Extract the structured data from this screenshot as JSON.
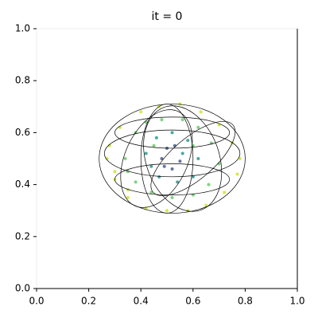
{
  "chart_data": {
    "type": "scatter",
    "title": "it = 0",
    "xlim": [
      0,
      1
    ],
    "ylim": [
      0,
      1
    ],
    "xticks": [
      {
        "value": 0,
        "label": "0.0"
      },
      {
        "value": 0.2,
        "label": "0.2"
      },
      {
        "value": 0.4,
        "label": "0.4"
      },
      {
        "value": 0.6,
        "label": "0.6"
      },
      {
        "value": 0.8,
        "label": "0.8"
      },
      {
        "value": 1,
        "label": "1.0"
      }
    ],
    "yticks": [
      {
        "value": 0,
        "label": "0.0"
      },
      {
        "value": 0.2,
        "label": "0.2"
      },
      {
        "value": 0.4,
        "label": "0.4"
      },
      {
        "value": 0.6,
        "label": "0.6"
      },
      {
        "value": 0.8,
        "label": "0.8"
      },
      {
        "value": 1,
        "label": "1.0"
      }
    ],
    "series": [
      {
        "color": "#cde11d",
        "x": [
          0.28,
          0.3,
          0.32,
          0.35,
          0.4,
          0.47,
          0.55,
          0.63,
          0.7,
          0.75,
          0.78,
          0.77,
          0.72,
          0.65,
          0.58,
          0.5,
          0.42,
          0.35,
          0.3,
          0.27
        ],
        "values": [
          0.55,
          0.45,
          0.62,
          0.38,
          0.68,
          0.7,
          0.71,
          0.68,
          0.63,
          0.56,
          0.5,
          0.44,
          0.37,
          0.32,
          0.3,
          0.3,
          0.31,
          0.35,
          0.42,
          0.5
        ]
      },
      {
        "color": "#5ec962",
        "x": [
          0.34,
          0.38,
          0.42,
          0.48,
          0.56,
          0.62,
          0.67,
          0.7,
          0.66,
          0.6,
          0.52,
          0.44,
          0.38,
          0.35,
          0.45,
          0.6
        ],
        "values": [
          0.5,
          0.6,
          0.64,
          0.65,
          0.65,
          0.62,
          0.56,
          0.48,
          0.4,
          0.36,
          0.35,
          0.37,
          0.41,
          0.45,
          0.55,
          0.55
        ]
      },
      {
        "color": "#21918c",
        "x": [
          0.42,
          0.46,
          0.52,
          0.58,
          0.62,
          0.6,
          0.54,
          0.47,
          0.44,
          0.56
        ],
        "values": [
          0.52,
          0.58,
          0.6,
          0.57,
          0.5,
          0.43,
          0.41,
          0.43,
          0.47,
          0.52
        ]
      },
      {
        "color": "#3b528b",
        "x": [
          0.48,
          0.5,
          0.53,
          0.55,
          0.52,
          0.49
        ],
        "values": [
          0.5,
          0.54,
          0.55,
          0.49,
          0.46,
          0.47
        ]
      }
    ],
    "ellipses": [
      {
        "cx": 0.52,
        "cy": 0.5,
        "rx": 0.28,
        "ry": 0.21,
        "angle": 0
      },
      {
        "cx": 0.52,
        "cy": 0.52,
        "rx": 0.26,
        "ry": 0.09,
        "angle": 0
      },
      {
        "cx": 0.52,
        "cy": 0.42,
        "rx": 0.22,
        "ry": 0.06,
        "angle": 0
      },
      {
        "cx": 0.52,
        "cy": 0.6,
        "rx": 0.22,
        "ry": 0.06,
        "angle": 0
      },
      {
        "cx": 0.5,
        "cy": 0.5,
        "rx": 0.1,
        "ry": 0.21,
        "angle": 0
      },
      {
        "cx": 0.56,
        "cy": 0.5,
        "rx": 0.14,
        "ry": 0.21,
        "angle": 20
      },
      {
        "cx": 0.46,
        "cy": 0.5,
        "rx": 0.12,
        "ry": 0.2,
        "angle": -25
      },
      {
        "cx": 0.6,
        "cy": 0.5,
        "rx": 0.2,
        "ry": 0.08,
        "angle": 40
      }
    ]
  }
}
